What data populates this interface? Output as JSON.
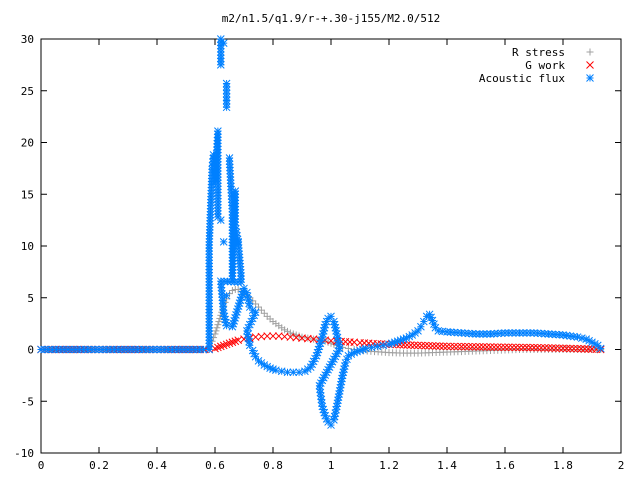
{
  "chart_data": {
    "type": "scatter",
    "title": "m2/n1.5/q1.9/r-+.30-j155/M2.0/512",
    "xlabel": "",
    "ylabel": "",
    "xlim": [
      0,
      2
    ],
    "ylim": [
      -10,
      30
    ],
    "grid": false,
    "legend_position": "top-right",
    "x_ticks": [
      "0",
      "0.2",
      "0.4",
      "0.6",
      "0.8",
      "1",
      "1.2",
      "1.4",
      "1.6",
      "1.8",
      "2"
    ],
    "y_ticks": [
      "-10",
      "-5",
      "0",
      "5",
      "10",
      "15",
      "20",
      "25",
      "30"
    ],
    "series": [
      {
        "name": "R stress",
        "marker": "plus",
        "color": "#a0a0a0",
        "points": [
          [
            0.0,
            0
          ],
          [
            0.05,
            0
          ],
          [
            0.1,
            0
          ],
          [
            0.15,
            0
          ],
          [
            0.2,
            0
          ],
          [
            0.25,
            0
          ],
          [
            0.3,
            0
          ],
          [
            0.35,
            0
          ],
          [
            0.4,
            0
          ],
          [
            0.45,
            0
          ],
          [
            0.5,
            0
          ],
          [
            0.55,
            0
          ],
          [
            0.57,
            0
          ],
          [
            0.58,
            0.3
          ],
          [
            0.59,
            0.8
          ],
          [
            0.6,
            1.5
          ],
          [
            0.61,
            2.4
          ],
          [
            0.62,
            3.3
          ],
          [
            0.63,
            4.2
          ],
          [
            0.64,
            4.9
          ],
          [
            0.65,
            5.4
          ],
          [
            0.66,
            5.7
          ],
          [
            0.67,
            5.8
          ],
          [
            0.68,
            5.8
          ],
          [
            0.69,
            5.6
          ],
          [
            0.7,
            5.4
          ],
          [
            0.72,
            5.0
          ],
          [
            0.74,
            4.4
          ],
          [
            0.76,
            3.8
          ],
          [
            0.78,
            3.2
          ],
          [
            0.8,
            2.7
          ],
          [
            0.82,
            2.3
          ],
          [
            0.84,
            1.9
          ],
          [
            0.86,
            1.6
          ],
          [
            0.88,
            1.4
          ],
          [
            0.9,
            1.2
          ],
          [
            0.92,
            1.1
          ],
          [
            0.94,
            1.0
          ],
          [
            0.96,
            0.9
          ],
          [
            0.98,
            0.8
          ],
          [
            1.0,
            0.6
          ],
          [
            1.02,
            0.4
          ],
          [
            1.04,
            0.2
          ],
          [
            1.06,
            0.1
          ],
          [
            1.08,
            0.0
          ],
          [
            1.1,
            -0.1
          ],
          [
            1.15,
            -0.2
          ],
          [
            1.2,
            -0.3
          ],
          [
            1.25,
            -0.35
          ],
          [
            1.3,
            -0.35
          ],
          [
            1.35,
            -0.3
          ],
          [
            1.4,
            -0.25
          ],
          [
            1.45,
            -0.2
          ],
          [
            1.5,
            -0.15
          ],
          [
            1.55,
            -0.1
          ],
          [
            1.6,
            -0.05
          ],
          [
            1.65,
            0
          ],
          [
            1.7,
            0
          ],
          [
            1.75,
            0
          ],
          [
            1.8,
            0
          ],
          [
            1.85,
            0
          ],
          [
            1.9,
            0
          ],
          [
            1.93,
            0
          ]
        ]
      },
      {
        "name": "G work",
        "marker": "cross",
        "color": "#ff0000",
        "points": [
          [
            0.0,
            0
          ],
          [
            0.05,
            0
          ],
          [
            0.1,
            0
          ],
          [
            0.15,
            0
          ],
          [
            0.2,
            0
          ],
          [
            0.25,
            0
          ],
          [
            0.3,
            0
          ],
          [
            0.35,
            0
          ],
          [
            0.4,
            0
          ],
          [
            0.45,
            0
          ],
          [
            0.5,
            0
          ],
          [
            0.55,
            0
          ],
          [
            0.58,
            0
          ],
          [
            0.6,
            0.1
          ],
          [
            0.62,
            0.3
          ],
          [
            0.64,
            0.5
          ],
          [
            0.66,
            0.7
          ],
          [
            0.68,
            0.9
          ],
          [
            0.7,
            1.0
          ],
          [
            0.72,
            1.1
          ],
          [
            0.74,
            1.2
          ],
          [
            0.76,
            1.25
          ],
          [
            0.78,
            1.3
          ],
          [
            0.8,
            1.3
          ],
          [
            0.82,
            1.3
          ],
          [
            0.84,
            1.25
          ],
          [
            0.86,
            1.2
          ],
          [
            0.88,
            1.15
          ],
          [
            0.9,
            1.1
          ],
          [
            0.92,
            1.05
          ],
          [
            0.94,
            1.0
          ],
          [
            0.96,
            0.95
          ],
          [
            0.98,
            0.9
          ],
          [
            1.0,
            0.85
          ],
          [
            1.02,
            0.8
          ],
          [
            1.05,
            0.75
          ],
          [
            1.08,
            0.7
          ],
          [
            1.1,
            0.65
          ],
          [
            1.13,
            0.6
          ],
          [
            1.16,
            0.55
          ],
          [
            1.2,
            0.5
          ],
          [
            1.25,
            0.45
          ],
          [
            1.3,
            0.4
          ],
          [
            1.35,
            0.35
          ],
          [
            1.4,
            0.3
          ],
          [
            1.45,
            0.28
          ],
          [
            1.5,
            0.26
          ],
          [
            1.55,
            0.24
          ],
          [
            1.6,
            0.22
          ],
          [
            1.65,
            0.2
          ],
          [
            1.7,
            0.18
          ],
          [
            1.75,
            0.15
          ],
          [
            1.8,
            0.12
          ],
          [
            1.85,
            0.08
          ],
          [
            1.9,
            0.04
          ],
          [
            1.93,
            0.0
          ]
        ]
      },
      {
        "name": "Acoustic flux",
        "marker": "star",
        "color": "#0080ff",
        "points": [
          [
            0.0,
            0
          ],
          [
            0.04,
            0
          ],
          [
            0.08,
            0
          ],
          [
            0.12,
            0
          ],
          [
            0.16,
            0
          ],
          [
            0.2,
            0
          ],
          [
            0.24,
            0
          ],
          [
            0.28,
            0
          ],
          [
            0.32,
            0
          ],
          [
            0.36,
            0
          ],
          [
            0.4,
            0
          ],
          [
            0.44,
            0
          ],
          [
            0.48,
            0
          ],
          [
            0.52,
            0
          ],
          [
            0.56,
            0
          ],
          [
            0.58,
            0
          ],
          [
            0.58,
            10.1
          ],
          [
            0.59,
            17.4
          ],
          [
            0.595,
            18.8
          ],
          [
            0.6,
            17.5
          ],
          [
            0.6,
            16.2
          ],
          [
            0.61,
            21.1
          ],
          [
            0.61,
            12.8
          ],
          [
            0.62,
            12.5
          ],
          [
            0.62,
            27.5
          ],
          [
            0.62,
            30.0
          ],
          [
            0.63,
            29.6
          ],
          [
            0.63,
            10.4
          ],
          [
            0.64,
            25.7
          ],
          [
            0.64,
            23.4
          ],
          [
            0.64,
            5.2
          ],
          [
            0.65,
            18.5
          ],
          [
            0.65,
            18.2
          ],
          [
            0.66,
            13.3
          ],
          [
            0.66,
            6.8
          ],
          [
            0.67,
            15.3
          ],
          [
            0.67,
            12.0
          ],
          [
            0.68,
            10.3
          ],
          [
            0.68,
            10.4
          ],
          [
            0.69,
            7.1
          ],
          [
            0.69,
            6.5
          ],
          [
            0.62,
            6.6
          ],
          [
            0.63,
            3.5
          ],
          [
            0.64,
            2.3
          ],
          [
            0.66,
            2.2
          ],
          [
            0.7,
            5.9
          ],
          [
            0.71,
            5.5
          ],
          [
            0.72,
            4.1
          ],
          [
            0.73,
            3.8
          ],
          [
            0.74,
            3.6
          ],
          [
            0.71,
            1.8
          ],
          [
            0.72,
            0.4
          ],
          [
            0.73,
            -0.1
          ],
          [
            0.74,
            -0.7
          ],
          [
            0.75,
            -1.1
          ],
          [
            0.77,
            -1.5
          ],
          [
            0.79,
            -1.8
          ],
          [
            0.81,
            -2.0
          ],
          [
            0.83,
            -2.1
          ],
          [
            0.85,
            -2.2
          ],
          [
            0.87,
            -2.2
          ],
          [
            0.89,
            -2.2
          ],
          [
            0.91,
            -2.1
          ],
          [
            0.93,
            -1.7
          ],
          [
            0.95,
            -0.6
          ],
          [
            0.97,
            1.2
          ],
          [
            0.98,
            2.4
          ],
          [
            0.99,
            3.0
          ],
          [
            1.0,
            3.2
          ],
          [
            1.01,
            2.7
          ],
          [
            1.02,
            1.5
          ],
          [
            1.03,
            0.1
          ],
          [
            0.96,
            -3.5
          ],
          [
            0.97,
            -5.5
          ],
          [
            0.98,
            -6.4
          ],
          [
            0.99,
            -7.0
          ],
          [
            1.0,
            -7.3
          ],
          [
            1.01,
            -6.8
          ],
          [
            1.02,
            -5.5
          ],
          [
            1.03,
            -4.0
          ],
          [
            1.04,
            -2.5
          ],
          [
            1.05,
            -1.3
          ],
          [
            1.06,
            -0.6
          ],
          [
            1.08,
            -0.3
          ],
          [
            1.1,
            -0.1
          ],
          [
            1.12,
            0.1
          ],
          [
            1.14,
            0.2
          ],
          [
            1.16,
            0.3
          ],
          [
            1.18,
            0.4
          ],
          [
            1.2,
            0.5
          ],
          [
            1.22,
            0.7
          ],
          [
            1.24,
            0.9
          ],
          [
            1.26,
            1.1
          ],
          [
            1.28,
            1.4
          ],
          [
            1.3,
            1.8
          ],
          [
            1.31,
            2.2
          ],
          [
            1.32,
            2.7
          ],
          [
            1.33,
            3.2
          ],
          [
            1.34,
            3.4
          ],
          [
            1.35,
            2.8
          ],
          [
            1.36,
            2.1
          ],
          [
            1.37,
            1.8
          ],
          [
            1.4,
            1.7
          ],
          [
            1.45,
            1.6
          ],
          [
            1.5,
            1.5
          ],
          [
            1.55,
            1.5
          ],
          [
            1.6,
            1.6
          ],
          [
            1.65,
            1.6
          ],
          [
            1.7,
            1.6
          ],
          [
            1.75,
            1.5
          ],
          [
            1.8,
            1.4
          ],
          [
            1.85,
            1.2
          ],
          [
            1.88,
            1.0
          ],
          [
            1.9,
            0.7
          ],
          [
            1.92,
            0.4
          ],
          [
            1.93,
            0.1
          ]
        ]
      }
    ]
  }
}
